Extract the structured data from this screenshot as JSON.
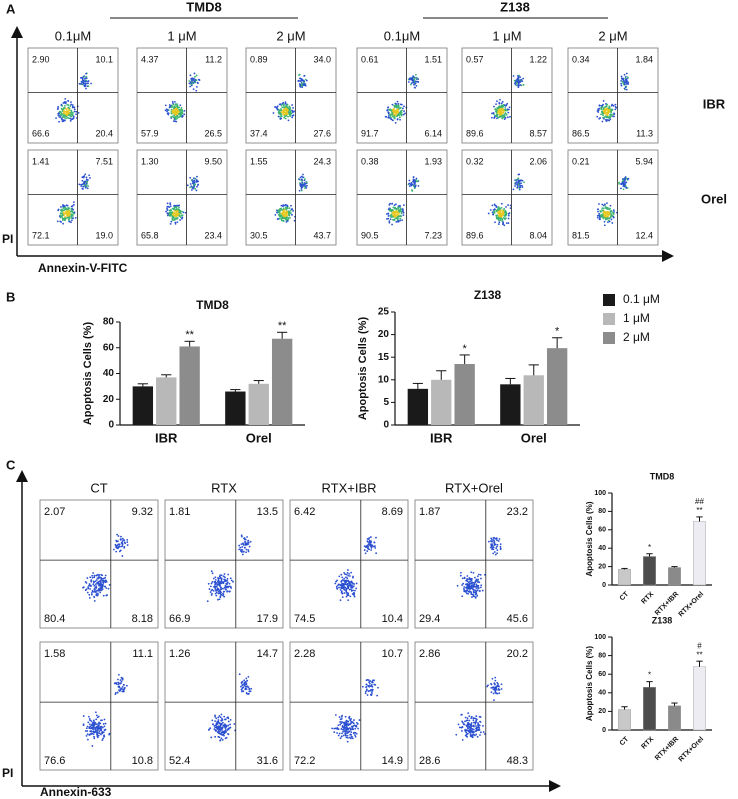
{
  "panel_a": {
    "label": "A",
    "groups": [
      "TMD8",
      "Z138"
    ],
    "columns": [
      "0.1μM",
      "1 μM",
      "2 μM",
      "0.1μM",
      "1 μM",
      "2 μM"
    ],
    "rows": [
      "IBR",
      "Orel"
    ],
    "quadrants": [
      [
        [
          "2.90",
          "10.1",
          "66.6",
          "20.4"
        ],
        [
          "4.37",
          "11.2",
          "57.9",
          "26.5"
        ],
        [
          "0.89",
          "34.0",
          "37.4",
          "27.6"
        ],
        [
          "0.61",
          "1.51",
          "91.7",
          "6.14"
        ],
        [
          "0.57",
          "1.22",
          "89.6",
          "8.57"
        ],
        [
          "0.34",
          "1.84",
          "86.5",
          "11.3"
        ]
      ],
      [
        [
          "1.41",
          "7.51",
          "72.1",
          "19.0"
        ],
        [
          "1.30",
          "9.50",
          "65.8",
          "23.4"
        ],
        [
          "1.55",
          "24.3",
          "30.5",
          "43.7"
        ],
        [
          "0.38",
          "1.93",
          "90.5",
          "7.23"
        ],
        [
          "0.32",
          "2.06",
          "89.6",
          "8.04"
        ],
        [
          "0.21",
          "5.94",
          "81.5",
          "12.4"
        ]
      ]
    ],
    "y_axis": "PI",
    "x_axis": "Annexin-V-FITC"
  },
  "panel_b": {
    "label": "B"
  },
  "panel_c": {
    "label": "C",
    "columns": [
      "CT",
      "RTX",
      "RTX+IBR",
      "RTX+Orel"
    ],
    "quadrants": [
      [
        [
          "2.07",
          "9.32",
          "80.4",
          "8.18"
        ],
        [
          "1.81",
          "13.5",
          "66.9",
          "17.9"
        ],
        [
          "6.42",
          "8.69",
          "74.5",
          "10.4"
        ],
        [
          "1.87",
          "23.2",
          "29.4",
          "45.6"
        ]
      ],
      [
        [
          "1.58",
          "11.1",
          "76.6",
          "10.8"
        ],
        [
          "1.26",
          "14.7",
          "52.4",
          "31.6"
        ],
        [
          "2.28",
          "10.7",
          "72.2",
          "14.9"
        ],
        [
          "2.86",
          "20.2",
          "28.6",
          "48.3"
        ]
      ]
    ],
    "y_axis": "PI",
    "x_axis": "Annexin-633"
  },
  "chart_data": [
    {
      "type": "bar",
      "title": "TMD8",
      "y_label": "Apoptosis Cells (%)",
      "categories": [
        "IBR",
        "Orel"
      ],
      "series": [
        {
          "name": "0.1 μM",
          "color": "#1a1a1a",
          "values": [
            30,
            26
          ],
          "errors": [
            2,
            1.5
          ],
          "significance": [
            null,
            null
          ]
        },
        {
          "name": "1 μM",
          "color": "#b8b8b8",
          "values": [
            37,
            32
          ],
          "errors": [
            2,
            2.5
          ],
          "significance": [
            null,
            null
          ]
        },
        {
          "name": "2 μM",
          "color": "#8c8c8c",
          "values": [
            61,
            67
          ],
          "errors": [
            4,
            5
          ],
          "significance": [
            "**",
            "**"
          ]
        }
      ],
      "ylim": [
        0,
        80
      ],
      "yticks": [
        0,
        20,
        40,
        60,
        80
      ]
    },
    {
      "type": "bar",
      "title": "Z138",
      "y_label": "Apoptosis Cells (%)",
      "categories": [
        "IBR",
        "Orel"
      ],
      "series": [
        {
          "color": "#1a1a1a",
          "values": [
            8,
            9
          ],
          "errors": [
            1.2,
            1.3
          ],
          "significance": [
            null,
            null
          ]
        },
        {
          "color": "#b8b8b8",
          "values": [
            10,
            11
          ],
          "errors": [
            2,
            2.3
          ],
          "significance": [
            null,
            null
          ]
        },
        {
          "color": "#8c8c8c",
          "values": [
            13.5,
            17
          ],
          "errors": [
            2,
            2.3
          ],
          "significance": [
            "*",
            "*"
          ]
        }
      ],
      "ylim": [
        0,
        25
      ],
      "yticks": [
        0,
        5,
        10,
        15,
        20,
        25
      ]
    },
    {
      "type": "bar",
      "title": "TMD8",
      "y_label": "Apoptosis Cells (%)",
      "categories": [
        "CT",
        "RTX",
        "RTX+IBR",
        "RTX+Orel"
      ],
      "values": [
        17,
        31,
        19,
        69
      ],
      "errors": [
        1,
        3,
        1,
        5
      ],
      "colors": [
        "#c8c8c8",
        "#4d4d4d",
        "#8a8a8a",
        "#ececf2"
      ],
      "significance": [
        null,
        [
          "*"
        ],
        null,
        [
          "##",
          "**"
        ]
      ],
      "ylim": [
        0,
        100
      ],
      "yticks": [
        0,
        20,
        40,
        60,
        80,
        100
      ]
    },
    {
      "type": "bar",
      "title": "Z138",
      "y_label": "Apoptosis Cells (%)",
      "categories": [
        "CT",
        "RTX",
        "RTX+IBR",
        "RTX+Orel"
      ],
      "values": [
        22,
        46,
        26,
        68
      ],
      "errors": [
        3,
        6,
        3,
        6
      ],
      "colors": [
        "#c8c8c8",
        "#4d4d4d",
        "#8a8a8a",
        "#ececf2"
      ],
      "significance": [
        null,
        [
          "*"
        ],
        null,
        [
          "#",
          "**"
        ]
      ],
      "ylim": [
        0,
        100
      ],
      "yticks": [
        0,
        20,
        40,
        60,
        80,
        100
      ]
    }
  ]
}
